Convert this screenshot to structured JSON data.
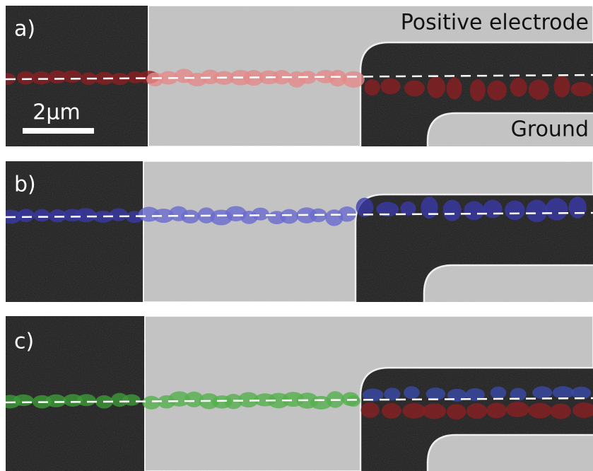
{
  "panels": [
    {
      "label": "a)"
    },
    {
      "label": "b)"
    },
    {
      "label": "c)"
    }
  ],
  "annotations": {
    "positive_electrode": "Positive electrode",
    "ground": "Ground",
    "scale_bar": "2µm"
  }
}
